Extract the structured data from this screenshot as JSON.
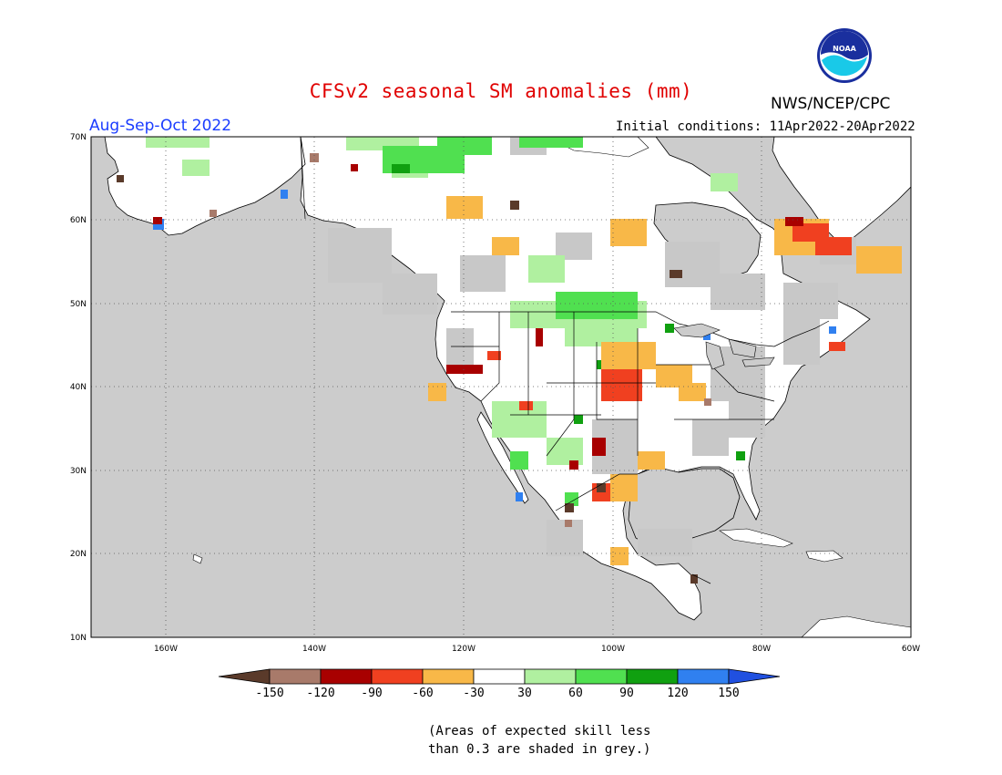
{
  "title": "CFSv2 seasonal SM anomalies (mm)",
  "agency": "NWS/NCEP/CPC",
  "season": "Aug-Sep-Oct 2022",
  "initial_conditions": "Initial conditions: 11Apr2022-20Apr2022",
  "logo_text": "NOAA",
  "lat_labels": [
    "70N",
    "60N",
    "50N",
    "40N",
    "30N",
    "20N",
    "10N"
  ],
  "lon_labels": [
    "160W",
    "140W",
    "120W",
    "100W",
    "80W",
    "60W"
  ],
  "legend": {
    "ticks": [
      "-150",
      "-120",
      "-90",
      "-60",
      "-30",
      "30",
      "60",
      "90",
      "120",
      "150"
    ],
    "colors": [
      "#5a3a2a",
      "#a87a6a",
      "#a80000",
      "#f04020",
      "#f8b848",
      "#ffffff",
      "#b0f0a0",
      "#50e050",
      "#10a010",
      "#3080f0",
      "#2050e0"
    ]
  },
  "note": [
    "(Areas of expected skill less",
    "than 0.3 are shaded in grey.)"
  ],
  "colors": {
    "title": "#e00000",
    "season": "#1a3cff",
    "ocean": "#cccccc",
    "land": "#ffffff",
    "skill_grey": "#c8c8c8"
  }
}
